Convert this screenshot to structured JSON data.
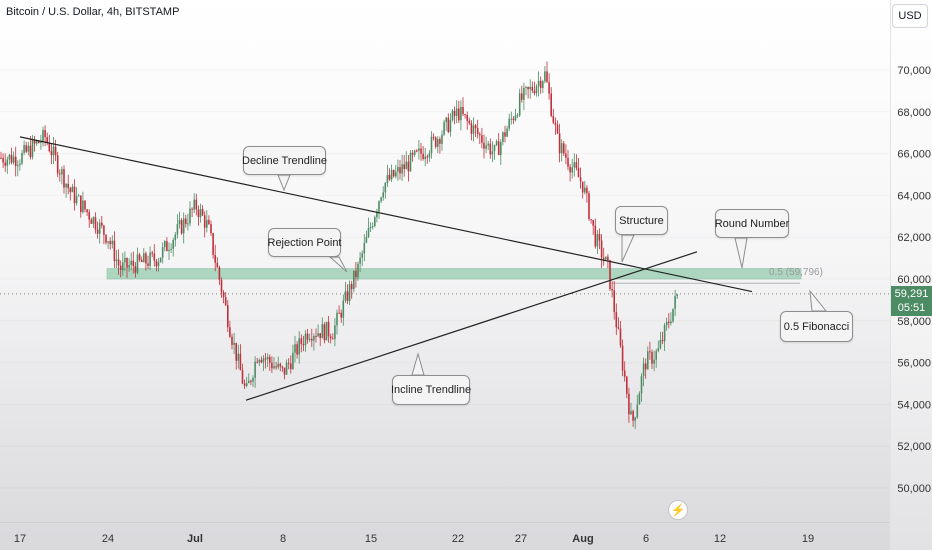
{
  "title": "Bitcoin / U.S. Dollar, 4h, BITSTAMP",
  "currency": "USD",
  "last_price": "59,291",
  "countdown": "05:51",
  "fib_label": "0.5 (59,796)",
  "colors": {
    "up": "#4c8b63",
    "down": "#c0303a",
    "zone": "#8fcaa9",
    "line": "#222222"
  },
  "annotations": {
    "decline_trendline": "Decline Trendline",
    "rejection_point": "Rejection Point",
    "incline_trendline": "Incline Trendline",
    "structure": "Structure",
    "round_number": "Round Number",
    "fibonacci": "0.5 Fibonacci"
  },
  "icons": {
    "replay": "lightning-icon"
  },
  "chart_data": {
    "type": "candlestick",
    "symbol": "BTC/USD",
    "interval": "4h",
    "exchange": "BITSTAMP",
    "y_ticks": [
      50000,
      52000,
      54000,
      56000,
      58000,
      60000,
      62000,
      64000,
      66000,
      68000,
      70000
    ],
    "ylim": [
      48000,
      72000
    ],
    "x_ticks": [
      "17",
      "24",
      "Jul",
      "8",
      "15",
      "22",
      "27",
      "Aug",
      "6",
      "12",
      "19"
    ],
    "price_path": [
      [
        "17",
        65800
      ],
      [
        "19",
        66800
      ],
      [
        "21",
        64200
      ],
      [
        "24",
        62000
      ],
      [
        "25",
        60500
      ],
      [
        "28",
        61000
      ],
      [
        "Jul 1",
        63500
      ],
      [
        "Jul 2",
        62500
      ],
      [
        "Jul 4",
        57000
      ],
      [
        "Jul 5",
        54500
      ],
      [
        "Jul 6",
        56500
      ],
      [
        "Jul 8",
        55500
      ],
      [
        "Jul 10",
        57500
      ],
      [
        "Jul 12",
        57500
      ],
      [
        "Jul 14",
        60500
      ],
      [
        "Jul 16",
        64500
      ],
      [
        "Jul 20",
        66500
      ],
      [
        "Jul 22",
        68000
      ],
      [
        "Jul 25",
        66000
      ],
      [
        "Jul 27",
        68500
      ],
      [
        "Jul 29",
        69800
      ],
      [
        "Jul 30",
        66500
      ],
      [
        "Aug 1",
        64500
      ],
      [
        "Aug 2",
        62000
      ],
      [
        "Aug 3",
        60500
      ],
      [
        "Aug 5",
        53000
      ],
      [
        "Aug 6",
        56000
      ],
      [
        "Aug 7",
        56500
      ],
      [
        "Aug 8",
        59291
      ]
    ],
    "support_zone": [
      60000,
      60500
    ],
    "fib_level": {
      "ratio": 0.5,
      "value": 59796
    },
    "last_value": 59291,
    "trendlines": [
      {
        "name": "Decline Trendline",
        "from": [
          "Jun 17",
          66800
        ],
        "to": [
          "Aug 13",
          59400
        ]
      },
      {
        "name": "Incline Trendline",
        "from": [
          "Jul 5",
          54200
        ],
        "to": [
          "Aug 9",
          61300
        ]
      }
    ]
  }
}
